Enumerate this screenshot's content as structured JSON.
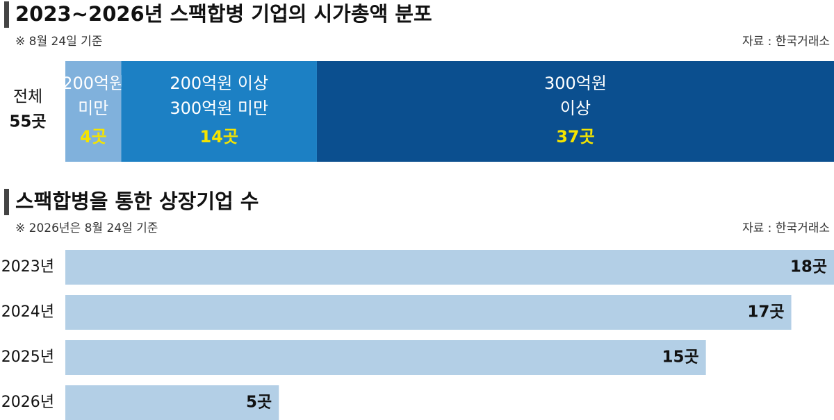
{
  "chart_data": [
    {
      "type": "stacked-bar",
      "title": "2023~2026년 스팩합병 기업의 시가총액 분포",
      "note": "※ 8월 24일 기준",
      "source": "자료 : 한국거래소",
      "label": "전체",
      "total": 55,
      "total_label": "55곳",
      "series": [
        {
          "name": [
            "200억원",
            "미만"
          ],
          "color": "#80b1dc",
          "values": [
            4
          ],
          "value_labels": [
            "4곳"
          ]
        },
        {
          "name": [
            "200억원 이상",
            "300억원 미만"
          ],
          "color": "#1c80c4",
          "values": [
            14
          ],
          "value_labels": [
            "14곳"
          ]
        },
        {
          "name": [
            "300억원",
            "이상"
          ],
          "color": "#0b4f8f",
          "values": [
            37
          ],
          "value_labels": [
            "37곳"
          ]
        }
      ]
    },
    {
      "type": "bar",
      "title": "스팩합병을 통한 상장기업 수",
      "note": "※ 2026년은 8월 24일 기준",
      "source": "자료 : 한국거래소",
      "categories": [
        "2023년",
        "2024년",
        "2025년",
        "2026년"
      ],
      "values": [
        18,
        17,
        15,
        5
      ],
      "value_labels": [
        "18곳",
        "17곳",
        "15곳",
        "5곳"
      ],
      "color": "#b3cfe6"
    }
  ]
}
